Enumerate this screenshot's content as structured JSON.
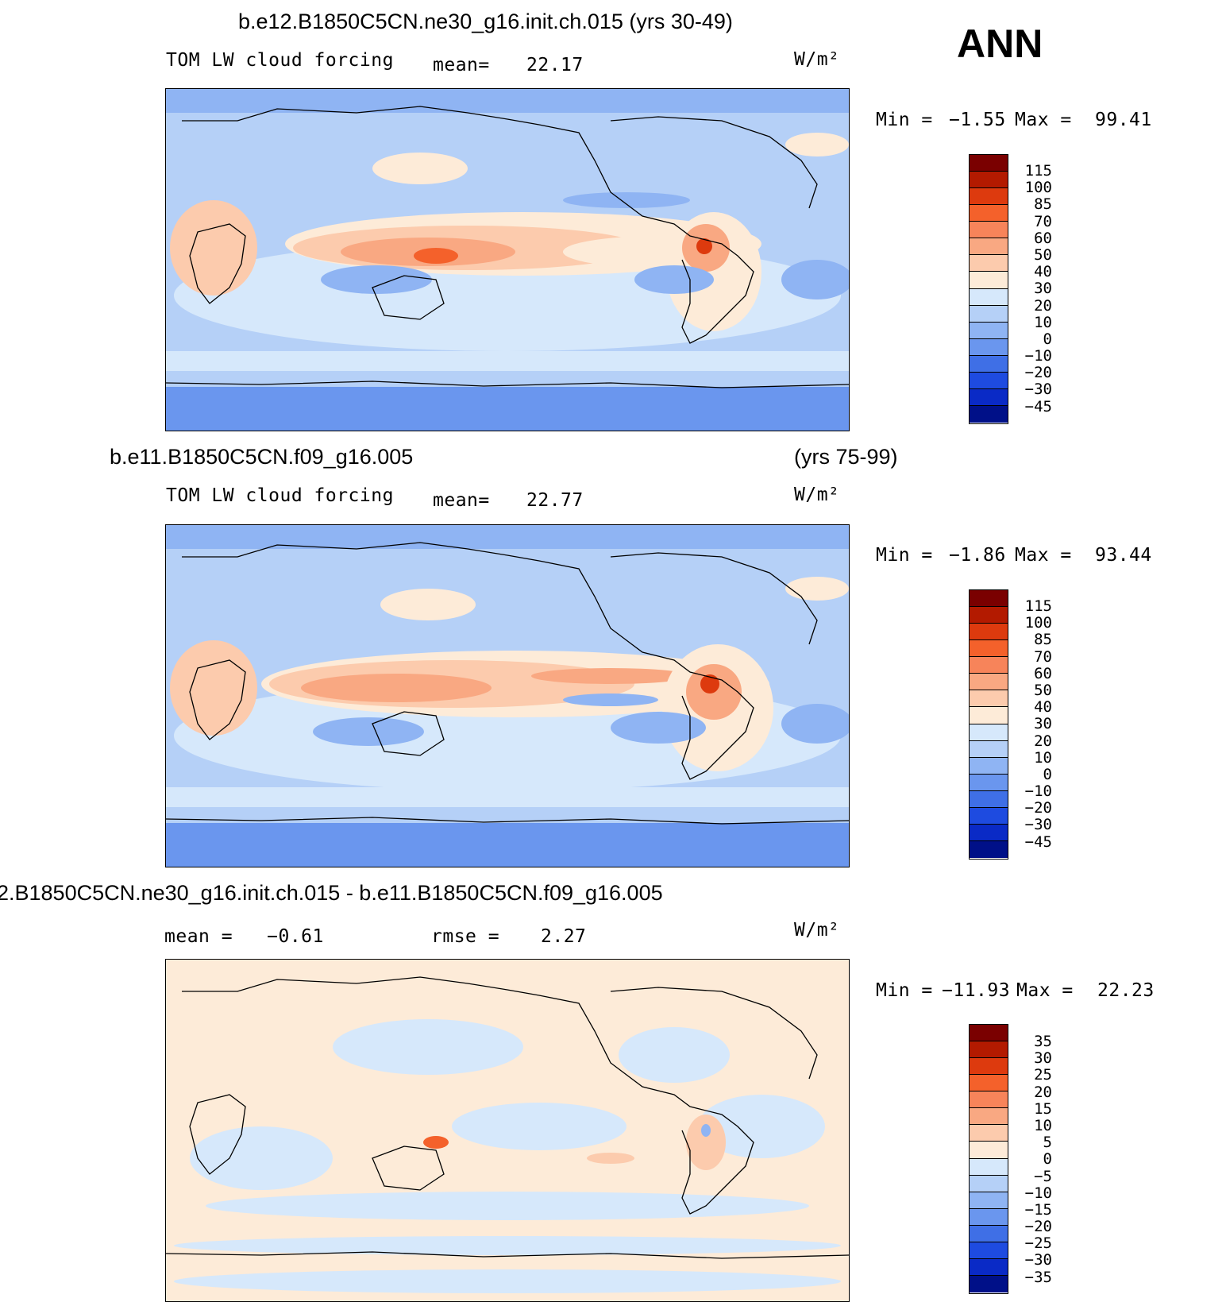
{
  "season": "ANN",
  "panels": [
    {
      "title": "b.e12.B1850C5CN.ne30_g16.init.ch.015 (yrs 30-49)",
      "title_right": "",
      "left_text": "TOM LW cloud forcing",
      "mid_label": "mean=",
      "mid_value": "22.17",
      "units": "W/m²",
      "min_label": "Min =",
      "min_value": "−1.55",
      "max_label": "Max =",
      "max_value": "99.41",
      "colorbar_labels": [
        "115",
        "100",
        "85",
        "70",
        "60",
        "50",
        "40",
        "30",
        "20",
        "10",
        "0",
        "−10",
        "−20",
        "−30",
        "−45"
      ]
    },
    {
      "title": "b.e11.B1850C5CN.f09_g16.005",
      "title_right": "(yrs 75-99)",
      "left_text": "TOM LW cloud forcing",
      "mid_label": "mean=",
      "mid_value": "22.77",
      "units": "W/m²",
      "min_label": "Min =",
      "min_value": "−1.86",
      "max_label": "Max =",
      "max_value": "93.44",
      "colorbar_labels": [
        "115",
        "100",
        "85",
        "70",
        "60",
        "50",
        "40",
        "30",
        "20",
        "10",
        "0",
        "−10",
        "−20",
        "−30",
        "−45"
      ]
    },
    {
      "title": "2.B1850C5CN.ne30_g16.init.ch.015 - b.e11.B1850C5CN.f09_g16.005",
      "title_right": "",
      "left_text": "mean =   −0.61",
      "mid_label": "rmse =",
      "mid_value": "2.27",
      "units": "W/m²",
      "min_label": "Min =",
      "min_value": "−11.93",
      "max_label": "Max =",
      "max_value": "22.23",
      "colorbar_labels": [
        "35",
        "30",
        "25",
        "20",
        "15",
        "10",
        "5",
        "0",
        "−5",
        "−10",
        "−15",
        "−20",
        "−25",
        "−30",
        "−35"
      ]
    }
  ],
  "colors": {
    "scale": [
      "#7a0000",
      "#b31a00",
      "#dd3a0e",
      "#f4612b",
      "#f7845a",
      "#f9a882",
      "#fccbad",
      "#fdebd8",
      "#d6e8fb",
      "#b5d0f7",
      "#8fb4f3",
      "#6a96ee",
      "#3f6fe6",
      "#1e4be0",
      "#0a2ac6",
      "#001088"
    ]
  }
}
